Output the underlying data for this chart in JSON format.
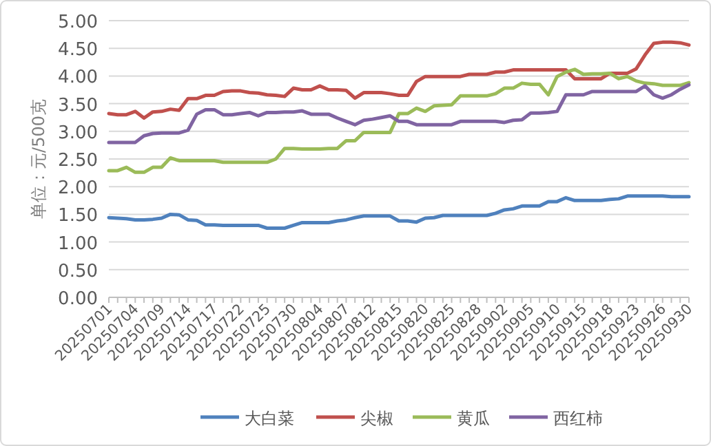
{
  "chart_data": {
    "type": "line",
    "ylabel": "单位：元/500克",
    "ylim": [
      0,
      5
    ],
    "yticks": [
      {
        "value": 0,
        "label": "0.00"
      },
      {
        "value": 0.5,
        "label": "0.50"
      },
      {
        "value": 1,
        "label": "1.00"
      },
      {
        "value": 1.5,
        "label": "1.50"
      },
      {
        "value": 2,
        "label": "2.00"
      },
      {
        "value": 2.5,
        "label": "2.50"
      },
      {
        "value": 3,
        "label": "3.00"
      },
      {
        "value": 3.5,
        "label": "3.50"
      },
      {
        "value": 4,
        "label": "4.00"
      },
      {
        "value": 4.5,
        "label": "4.50"
      },
      {
        "value": 5,
        "label": "5.00"
      }
    ],
    "grid": "y",
    "legend": "bottom",
    "categories": [
      "20250701",
      null,
      null,
      "20250704",
      null,
      null,
      "20250709",
      null,
      null,
      "20250714",
      null,
      null,
      "20250717",
      null,
      null,
      "20250722",
      null,
      null,
      "20250725",
      null,
      null,
      "20250730",
      null,
      null,
      "20250804",
      null,
      null,
      "20250807",
      null,
      null,
      "20250812",
      null,
      null,
      "20250815",
      null,
      null,
      "20250820",
      null,
      null,
      "20250825",
      null,
      null,
      "20250828",
      null,
      null,
      "20250902",
      null,
      null,
      "20250905",
      null,
      null,
      "20250910",
      null,
      null,
      "20250915",
      null,
      null,
      "20250918",
      null,
      null,
      "20250923",
      null,
      null,
      "20250926",
      null,
      null,
      "20250930"
    ],
    "series": [
      {
        "name": "大白菜",
        "color": "#4f81bd",
        "values": [
          1.44,
          1.43,
          1.42,
          1.4,
          1.4,
          1.41,
          1.43,
          1.5,
          1.49,
          1.4,
          1.39,
          1.31,
          1.31,
          1.3,
          1.3,
          1.3,
          1.3,
          1.3,
          1.25,
          1.25,
          1.25,
          1.3,
          1.35,
          1.35,
          1.35,
          1.35,
          1.38,
          1.4,
          1.44,
          1.47,
          1.47,
          1.47,
          1.47,
          1.38,
          1.38,
          1.36,
          1.43,
          1.44,
          1.48,
          1.48,
          1.48,
          1.48,
          1.48,
          1.48,
          1.52,
          1.58,
          1.6,
          1.65,
          1.65,
          1.65,
          1.73,
          1.73,
          1.8,
          1.75,
          1.75,
          1.75,
          1.75,
          1.77,
          1.78,
          1.83,
          1.83,
          1.83,
          1.83,
          1.83,
          1.82,
          1.82,
          1.82
        ]
      },
      {
        "name": "尖椒",
        "color": "#c0504d",
        "values": [
          3.32,
          3.3,
          3.3,
          3.36,
          3.24,
          3.35,
          3.36,
          3.4,
          3.38,
          3.59,
          3.59,
          3.65,
          3.65,
          3.72,
          3.73,
          3.73,
          3.7,
          3.69,
          3.66,
          3.65,
          3.63,
          3.78,
          3.75,
          3.75,
          3.82,
          3.75,
          3.75,
          3.74,
          3.6,
          3.7,
          3.7,
          3.7,
          3.68,
          3.65,
          3.65,
          3.9,
          3.99,
          3.99,
          3.99,
          3.99,
          3.99,
          4.03,
          4.03,
          4.03,
          4.07,
          4.07,
          4.11,
          4.11,
          4.11,
          4.11,
          4.11,
          4.11,
          4.11,
          3.95,
          3.95,
          3.95,
          3.95,
          4.05,
          4.05,
          4.05,
          4.13,
          4.38,
          4.59,
          4.61,
          4.61,
          4.6,
          4.56
        ]
      },
      {
        "name": "黄瓜",
        "color": "#9bbb59",
        "values": [
          2.29,
          2.29,
          2.35,
          2.26,
          2.26,
          2.35,
          2.35,
          2.52,
          2.47,
          2.47,
          2.47,
          2.47,
          2.47,
          2.44,
          2.44,
          2.44,
          2.44,
          2.44,
          2.44,
          2.5,
          2.69,
          2.69,
          2.68,
          2.68,
          2.68,
          2.69,
          2.69,
          2.83,
          2.83,
          2.98,
          2.98,
          2.98,
          2.98,
          3.32,
          3.32,
          3.42,
          3.36,
          3.46,
          3.47,
          3.48,
          3.64,
          3.64,
          3.64,
          3.64,
          3.68,
          3.78,
          3.78,
          3.87,
          3.85,
          3.85,
          3.66,
          3.99,
          4.07,
          4.12,
          4.03,
          4.04,
          4.04,
          4.05,
          3.95,
          3.99,
          3.91,
          3.87,
          3.86,
          3.83,
          3.83,
          3.83,
          3.88
        ]
      },
      {
        "name": "西红柿",
        "color": "#8064a2",
        "values": [
          2.8,
          2.8,
          2.8,
          2.8,
          2.92,
          2.96,
          2.97,
          2.97,
          2.97,
          3.02,
          3.31,
          3.39,
          3.39,
          3.3,
          3.3,
          3.32,
          3.34,
          3.28,
          3.34,
          3.34,
          3.35,
          3.35,
          3.37,
          3.31,
          3.31,
          3.31,
          3.24,
          3.18,
          3.12,
          3.2,
          3.22,
          3.25,
          3.28,
          3.18,
          3.18,
          3.12,
          3.12,
          3.12,
          3.12,
          3.12,
          3.18,
          3.18,
          3.18,
          3.18,
          3.18,
          3.16,
          3.2,
          3.21,
          3.33,
          3.33,
          3.34,
          3.36,
          3.66,
          3.66,
          3.66,
          3.72,
          3.72,
          3.72,
          3.72,
          3.72,
          3.72,
          3.82,
          3.66,
          3.6,
          3.66,
          3.76,
          3.84
        ]
      }
    ]
  }
}
